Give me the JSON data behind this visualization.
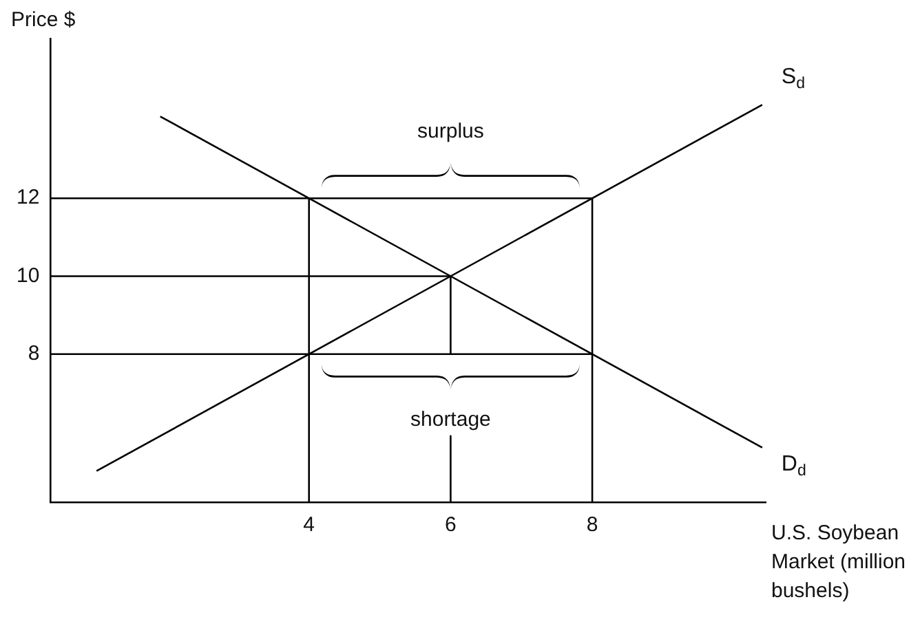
{
  "chart_data": {
    "type": "line",
    "ylabel": "Price $",
    "xlabel": "U.S. Soybean Market (million bushels)",
    "xlim": [
      0.35,
      10.45
    ],
    "ylim": [
      4.2,
      16.1
    ],
    "xticks": [
      4,
      6,
      8
    ],
    "yticks": [
      8,
      10,
      12
    ],
    "series": [
      {
        "name": "S$_{d}$",
        "color": "#000000",
        "x": [
          1,
          10.4
        ],
        "values": [
          5,
          14.4
        ]
      },
      {
        "name": "D$_{d}$",
        "color": "#000000",
        "x": [
          1.9,
          10.4
        ],
        "values": [
          14.1,
          5.6
        ]
      },
      {
        "color": "#000000",
        "x": [
          0.35,
          8
        ],
        "values": [
          12,
          12
        ]
      },
      {
        "color": "#000000",
        "x": [
          0.35,
          6
        ],
        "values": [
          10,
          10
        ]
      },
      {
        "color": "#000000",
        "x": [
          0.35,
          8
        ],
        "values": [
          8,
          8
        ]
      },
      {
        "color": "#000000",
        "x": [
          4,
          4
        ],
        "values": [
          4.2,
          12
        ]
      },
      {
        "color": "#000000",
        "x": [
          8,
          8
        ],
        "values": [
          4.2,
          12
        ]
      },
      {
        "color": "#000000",
        "x": [
          6,
          6
        ],
        "values": [
          10,
          8
        ]
      },
      {
        "color": "#000000",
        "x": [
          6,
          6
        ],
        "values": [
          5.9,
          4.2
        ]
      }
    ],
    "annotations": [
      "surplus",
      "shortage"
    ]
  }
}
